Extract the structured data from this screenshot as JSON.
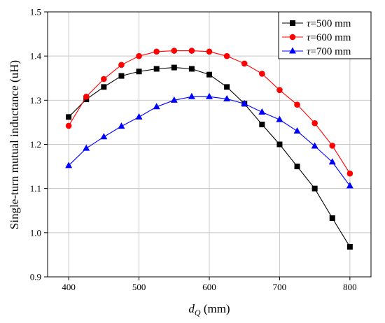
{
  "chart_data": {
    "type": "line",
    "xlabel": "dQ",
    "xlabel_var": "d",
    "xlabel_sub": "Q",
    "xlabel_unit": " (mm)",
    "ylabel": "Single-turn mutual inductance (uH)",
    "xlim": [
      370,
      830
    ],
    "ylim": [
      0.9,
      1.5
    ],
    "x_ticks": [
      400,
      500,
      600,
      700,
      800
    ],
    "y_ticks": [
      0.9,
      1.0,
      1.1,
      1.2,
      1.3,
      1.4,
      1.5
    ],
    "x_tick_labels": [
      "400",
      "500",
      "600",
      "700",
      "800"
    ],
    "y_tick_labels": [
      "0.9",
      "1.0",
      "1.1",
      "1.2",
      "1.3",
      "1.4",
      "1.5"
    ],
    "grid": true,
    "legend_position": "top-right",
    "x": [
      400,
      425,
      450,
      475,
      500,
      525,
      550,
      575,
      600,
      625,
      650,
      675,
      700,
      725,
      750,
      775,
      800
    ],
    "series": [
      {
        "name": "τ=500 mm",
        "symbol": "τ",
        "label_rest": "=500 mm",
        "color": "#000000",
        "marker": "square",
        "values": [
          1.262,
          1.302,
          1.33,
          1.355,
          1.365,
          1.371,
          1.374,
          1.371,
          1.358,
          1.33,
          1.292,
          1.245,
          1.2,
          1.15,
          1.1,
          1.033,
          0.968
        ]
      },
      {
        "name": "τ=600 mm",
        "symbol": "τ",
        "label_rest": "=600 mm",
        "color": "#ff0000",
        "marker": "circle",
        "values": [
          1.242,
          1.308,
          1.348,
          1.38,
          1.4,
          1.41,
          1.412,
          1.412,
          1.41,
          1.4,
          1.383,
          1.36,
          1.323,
          1.29,
          1.248,
          1.197,
          1.134
        ]
      },
      {
        "name": "τ=700 mm",
        "symbol": "τ",
        "label_rest": "=700 mm",
        "color": "#0000ff",
        "marker": "triangle",
        "values": [
          1.152,
          1.191,
          1.217,
          1.241,
          1.262,
          1.285,
          1.3,
          1.308,
          1.308,
          1.303,
          1.292,
          1.273,
          1.256,
          1.23,
          1.196,
          1.16,
          1.106
        ]
      }
    ]
  }
}
